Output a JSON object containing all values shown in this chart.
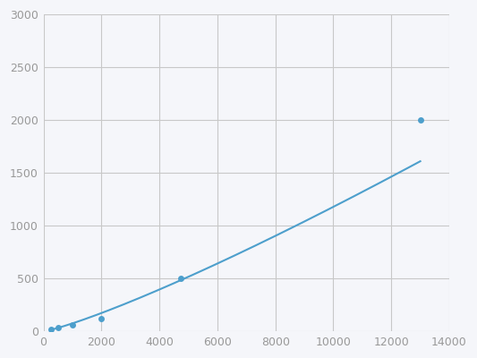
{
  "x": [
    250,
    500,
    1000,
    2000,
    4750,
    13000
  ],
  "y": [
    18,
    38,
    60,
    125,
    500,
    2000
  ],
  "line_color": "#4d9fcc",
  "marker_color": "#4d9fcc",
  "marker_size": 5,
  "line_width": 1.5,
  "xlim": [
    0,
    14000
  ],
  "ylim": [
    0,
    3000
  ],
  "xticks": [
    0,
    2000,
    4000,
    6000,
    8000,
    10000,
    12000,
    14000
  ],
  "yticks": [
    0,
    500,
    1000,
    1500,
    2000,
    2500,
    3000
  ],
  "grid_color": "#c8c8c8",
  "background_color": "#f5f6fa",
  "tick_fontsize": 9,
  "tick_color": "#999999"
}
